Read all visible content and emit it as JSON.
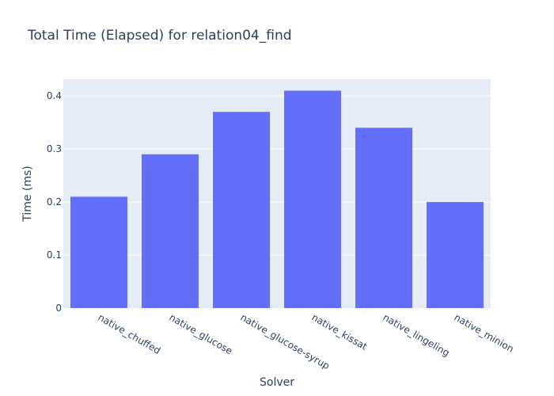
{
  "chart_data": {
    "type": "bar",
    "title": "Total Time (Elapsed) for relation04_find",
    "xlabel": "Solver",
    "ylabel": "Time (ms)",
    "categories": [
      "native_chuffed",
      "native_glucose",
      "native_glucose-syrup",
      "native_kissat",
      "native_lingeling",
      "native_minion"
    ],
    "values": [
      0.21,
      0.29,
      0.37,
      0.41,
      0.34,
      0.2
    ],
    "ylim": [
      0,
      0.4316
    ],
    "yticks": [
      0,
      0.1,
      0.2,
      0.3,
      0.4
    ],
    "ytick_labels": [
      "0",
      "0.1",
      "0.2",
      "0.3",
      "0.4"
    ],
    "grid": true,
    "colors": {
      "bar": "#636efa",
      "plot_background": "#e5ecf6",
      "gridline": "#ffffff",
      "text": "#2a3f5f"
    }
  }
}
